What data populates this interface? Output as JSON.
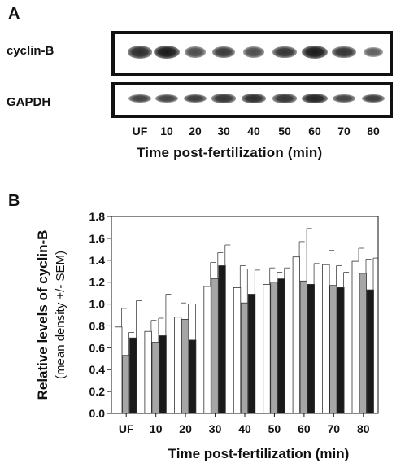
{
  "panelA": {
    "letter": "A",
    "row_labels": [
      "cyclin-B",
      "GAPDH"
    ],
    "lane_labels": [
      "UF",
      "10",
      "20",
      "30",
      "40",
      "50",
      "60",
      "70",
      "80"
    ],
    "xlabel": "Time post-fertilization (min)",
    "band_intensity": {
      "cyclin-B": [
        0.85,
        1.0,
        0.6,
        0.75,
        0.6,
        0.8,
        1.0,
        0.8,
        0.45
      ],
      "GAPDH": [
        0.7,
        0.7,
        0.75,
        0.8,
        0.85,
        0.8,
        0.95,
        0.7,
        0.75
      ]
    }
  },
  "panelB": {
    "letter": "B",
    "chart_data": {
      "type": "bar",
      "categories": [
        "UF",
        "10",
        "20",
        "30",
        "40",
        "50",
        "60",
        "70",
        "80"
      ],
      "series": [
        {
          "color": "#ffffff",
          "values": [
            0.79,
            0.75,
            0.88,
            1.16,
            1.15,
            1.18,
            1.43,
            1.36,
            1.39
          ],
          "errors": [
            0.17,
            0.1,
            0.13,
            0.22,
            0.2,
            0.15,
            0.14,
            0.13,
            0.12
          ]
        },
        {
          "color": "#a6a6a6",
          "values": [
            0.53,
            0.65,
            0.86,
            1.23,
            1.01,
            1.2,
            1.21,
            1.17,
            1.28
          ],
          "errors": [
            0.21,
            0.22,
            0.14,
            0.24,
            0.31,
            0.09,
            0.48,
            0.18,
            0.13
          ]
        },
        {
          "color": "#1a1a1a",
          "values": [
            0.69,
            0.71,
            0.67,
            1.35,
            1.09,
            1.23,
            1.18,
            1.15,
            1.13
          ],
          "errors": [
            0.34,
            0.38,
            0.33,
            0.19,
            0.22,
            0.1,
            0.19,
            0.14,
            0.29
          ]
        }
      ],
      "ylim": [
        0.0,
        1.8
      ],
      "yticks": [
        "0.0",
        "0.2",
        "0.4",
        "0.6",
        "0.8",
        "1.0",
        "1.2",
        "1.4",
        "1.6",
        "1.8"
      ],
      "ylabel_line1": "Relative levels of cyclin-B",
      "ylabel_line2": "(mean density +/- SEM)",
      "xlabel": "Time post-fertilization (min)",
      "grid": false
    }
  }
}
